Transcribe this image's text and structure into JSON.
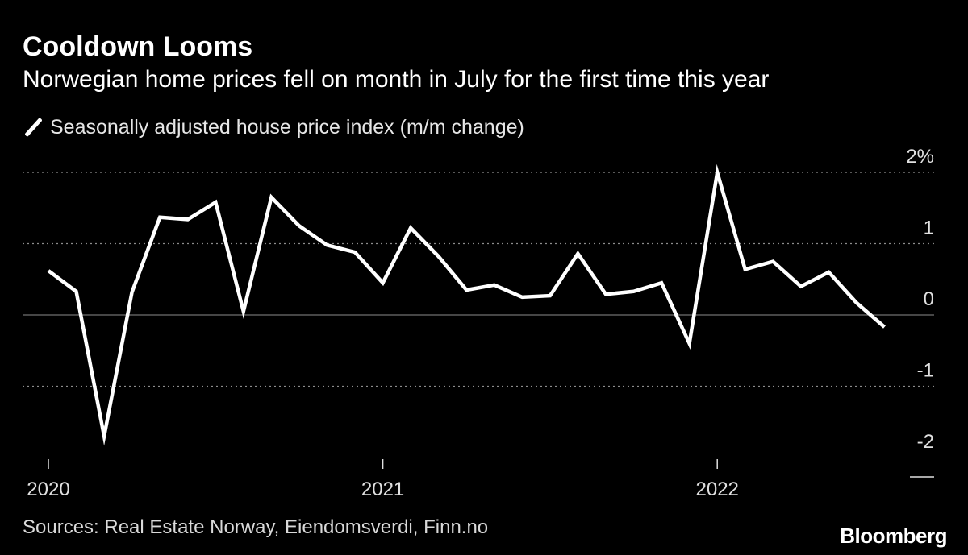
{
  "chart_data": {
    "type": "line",
    "title": "Cooldown Looms",
    "subtitle": "Norwegian home prices fell on month in July for the first time this year",
    "series": [
      {
        "name": "Seasonally adjusted house price index (m/m change)",
        "color": "#ffffff",
        "x": [
          "2020-01",
          "2020-02",
          "2020-03",
          "2020-04",
          "2020-05",
          "2020-06",
          "2020-07",
          "2020-08",
          "2020-09",
          "2020-10",
          "2020-11",
          "2020-12",
          "2021-01",
          "2021-02",
          "2021-03",
          "2021-04",
          "2021-05",
          "2021-06",
          "2021-07",
          "2021-08",
          "2021-09",
          "2021-10",
          "2021-11",
          "2021-12",
          "2022-01",
          "2022-02",
          "2022-03",
          "2022-04",
          "2022-05",
          "2022-06",
          "2022-07"
        ],
        "values": [
          0.62,
          0.33,
          -1.7,
          0.32,
          1.37,
          1.34,
          1.58,
          0.05,
          1.65,
          1.25,
          0.98,
          0.88,
          0.45,
          1.22,
          0.82,
          0.35,
          0.42,
          0.25,
          0.27,
          0.86,
          0.29,
          0.33,
          0.45,
          -0.4,
          2.0,
          0.64,
          0.75,
          0.4,
          0.6,
          0.17,
          -0.17
        ]
      }
    ],
    "y_ticks": [
      "2%",
      "1",
      "0",
      "-1",
      "-2"
    ],
    "y_tick_values": [
      2,
      1,
      0,
      -1,
      -2
    ],
    "x_ticks": [
      "2020",
      "2021",
      "2022"
    ],
    "x_tick_dates": [
      "2020-01",
      "2021-01",
      "2022-01"
    ],
    "ylim": [
      -2,
      2
    ],
    "grid": "dotted horizontal",
    "legend_position": "top-left",
    "xlabel": "",
    "ylabel": ""
  },
  "footer": {
    "source": "Sources: Real Estate Norway, Eiendomsverdi, Finn.no",
    "logo": "Bloomberg"
  },
  "colors": {
    "background": "#000000",
    "line": "#ffffff",
    "grid": "#8c8c8c"
  }
}
